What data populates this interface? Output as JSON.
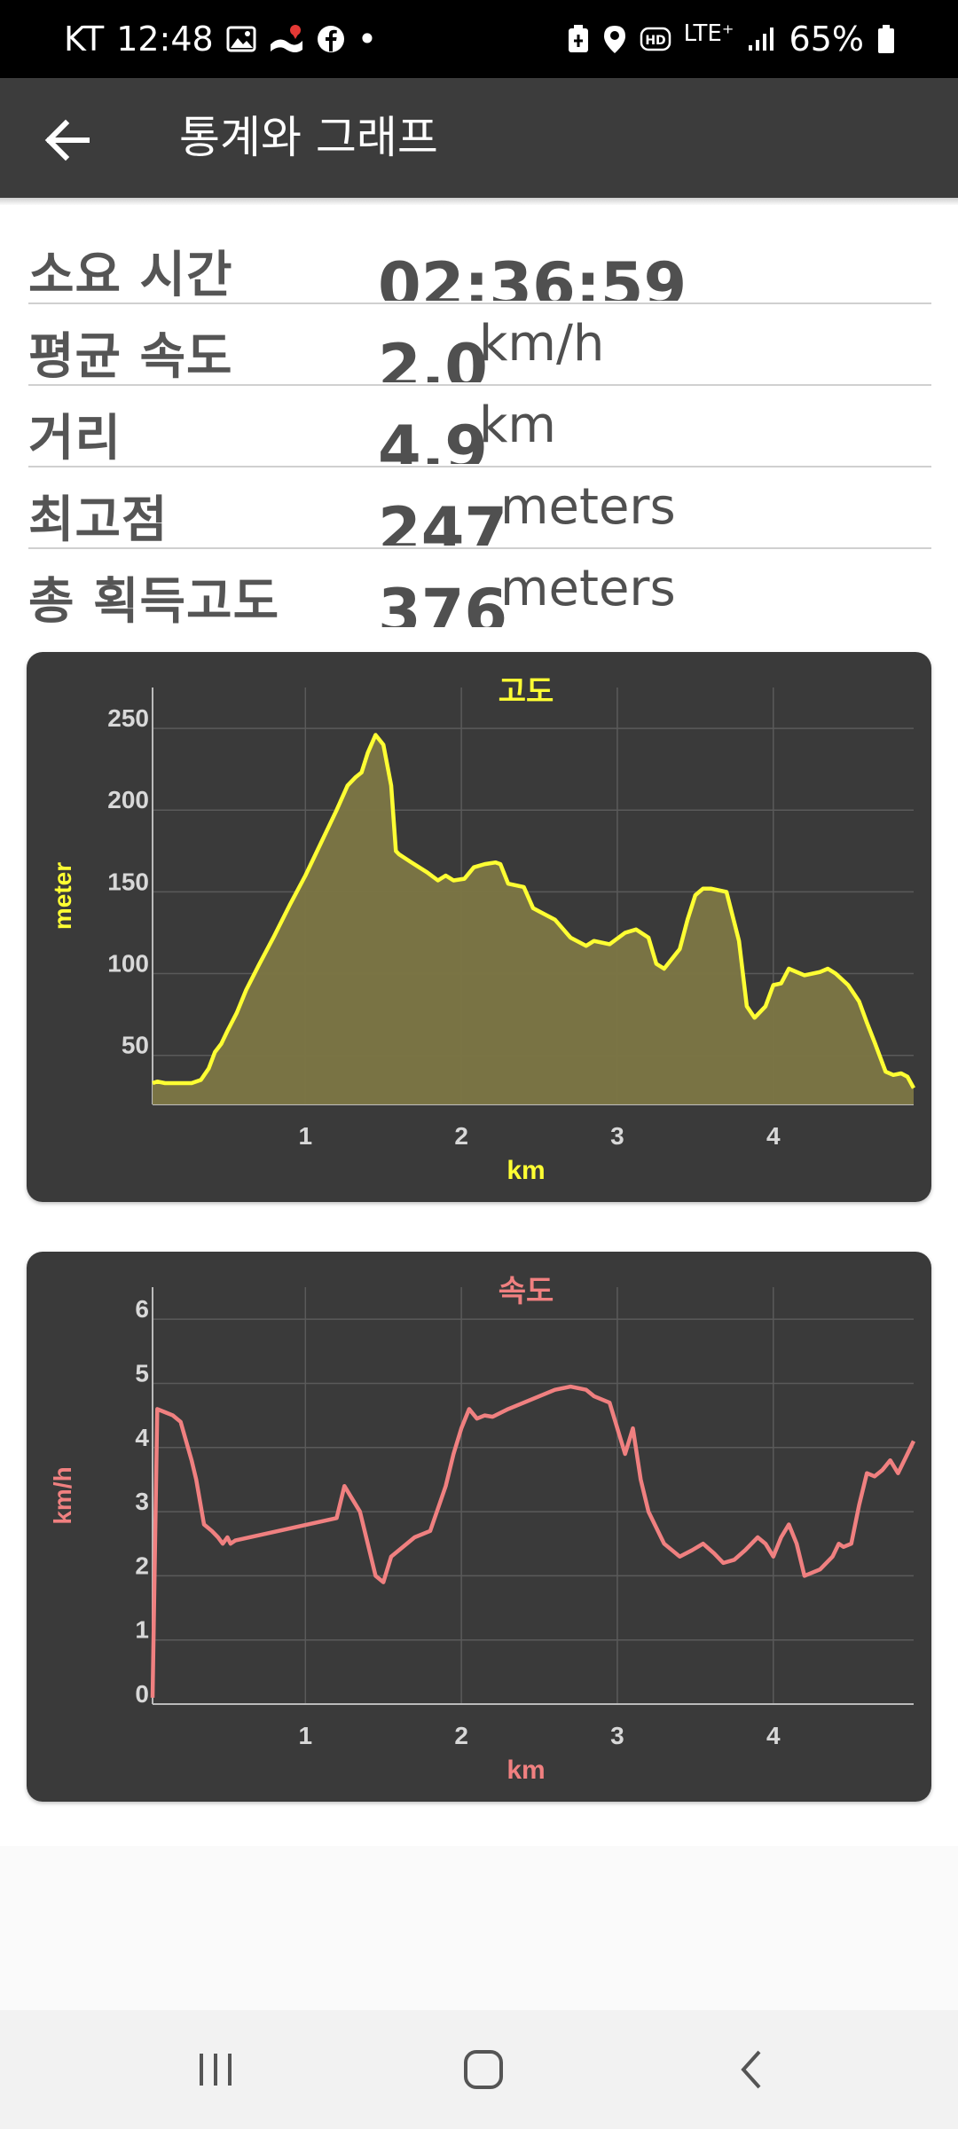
{
  "status_bar": {
    "carrier": "KT",
    "time": "12:48",
    "dot": "•",
    "network": "LTE⁺",
    "battery": "65%",
    "icons": [
      "gallery-icon",
      "map-notification-icon",
      "facebook-icon",
      "battery-saver-icon",
      "location-icon",
      "hd-voice-icon",
      "signal-icon",
      "battery-icon"
    ]
  },
  "header": {
    "back_icon": "arrow-left-icon",
    "title": "통계와 그래프"
  },
  "stats": [
    {
      "label": "소요 시간",
      "value": "02:36:59",
      "unit": ""
    },
    {
      "label": "평균 속도",
      "value": "2.0",
      "unit": "km/h"
    },
    {
      "label": "거리",
      "value": "4.9",
      "unit": "km"
    },
    {
      "label": "최고점",
      "value": "247",
      "unit": "meters"
    },
    {
      "label": "총 획득고도",
      "value": "376",
      "unit": "meters"
    }
  ],
  "chart_data": [
    {
      "type": "area",
      "title": "고도",
      "xlabel": "km",
      "ylabel": "meter",
      "color": "#ffff33",
      "fill": "#7c7644",
      "xlim": [
        0.02,
        4.9
      ],
      "ylim": [
        20,
        275
      ],
      "xticks": [
        1,
        2,
        3,
        4
      ],
      "yticks": [
        50,
        100,
        150,
        200,
        250
      ],
      "grid": true,
      "x": [
        0.02,
        0.05,
        0.1,
        0.2,
        0.27,
        0.33,
        0.38,
        0.42,
        0.46,
        0.5,
        0.56,
        0.62,
        0.7,
        0.8,
        0.9,
        1.0,
        1.1,
        1.2,
        1.27,
        1.32,
        1.36,
        1.4,
        1.45,
        1.5,
        1.55,
        1.58,
        1.6,
        1.68,
        1.78,
        1.85,
        1.9,
        1.95,
        2.02,
        2.08,
        2.15,
        2.22,
        2.25,
        2.3,
        2.4,
        2.46,
        2.5,
        2.6,
        2.7,
        2.8,
        2.85,
        2.95,
        3.05,
        3.12,
        3.2,
        3.25,
        3.3,
        3.4,
        3.45,
        3.5,
        3.55,
        3.6,
        3.7,
        3.78,
        3.83,
        3.88,
        3.95,
        4.0,
        4.05,
        4.1,
        4.2,
        4.3,
        4.35,
        4.4,
        4.48,
        4.55,
        4.6,
        4.65,
        4.72,
        4.77,
        4.82,
        4.86,
        4.9
      ],
      "y": [
        33,
        34,
        33,
        33,
        33,
        35,
        42,
        52,
        57,
        65,
        76,
        90,
        105,
        123,
        142,
        160,
        180,
        200,
        215,
        220,
        223,
        235,
        246,
        240,
        215,
        175,
        173,
        168,
        162,
        157,
        160,
        157,
        158,
        165,
        167,
        168,
        167,
        155,
        153,
        140,
        138,
        133,
        122,
        117,
        120,
        118,
        125,
        127,
        122,
        106,
        103,
        115,
        133,
        148,
        152,
        152,
        150,
        120,
        80,
        73,
        80,
        93,
        94,
        103,
        99,
        101,
        103,
        100,
        93,
        83,
        70,
        58,
        40,
        38,
        39,
        37,
        30
      ]
    },
    {
      "type": "line",
      "title": "속도",
      "xlabel": "km",
      "ylabel": "km/h",
      "color": "#f08080",
      "xlim": [
        0.02,
        4.9
      ],
      "ylim": [
        0,
        6.5
      ],
      "xticks": [
        1,
        2,
        3,
        4
      ],
      "yticks": [
        0,
        1,
        2,
        3,
        4,
        5,
        6
      ],
      "grid": true,
      "x": [
        0.02,
        0.05,
        0.1,
        0.15,
        0.2,
        0.27,
        0.3,
        0.35,
        0.4,
        0.44,
        0.47,
        0.5,
        0.52,
        0.55,
        1.2,
        1.25,
        1.3,
        1.35,
        1.4,
        1.45,
        1.5,
        1.55,
        1.6,
        1.7,
        1.8,
        1.9,
        1.95,
        2.0,
        2.05,
        2.1,
        2.15,
        2.2,
        2.3,
        2.4,
        2.5,
        2.6,
        2.7,
        2.8,
        2.85,
        2.95,
        3.05,
        3.1,
        3.15,
        3.2,
        3.3,
        3.4,
        3.48,
        3.55,
        3.62,
        3.68,
        3.75,
        3.82,
        3.9,
        3.95,
        4.0,
        4.05,
        4.1,
        4.15,
        4.2,
        4.3,
        4.38,
        4.42,
        4.45,
        4.5,
        4.55,
        4.6,
        4.65,
        4.7,
        4.75,
        4.8,
        4.86,
        4.9
      ],
      "y": [
        0.1,
        4.6,
        4.55,
        4.5,
        4.4,
        3.8,
        3.5,
        2.8,
        2.7,
        2.6,
        2.5,
        2.6,
        2.5,
        2.55,
        2.9,
        3.4,
        3.2,
        3.0,
        2.5,
        2.0,
        1.9,
        2.3,
        2.4,
        2.6,
        2.7,
        3.4,
        3.9,
        4.3,
        4.6,
        4.45,
        4.5,
        4.48,
        4.6,
        4.7,
        4.8,
        4.9,
        4.95,
        4.9,
        4.8,
        4.7,
        3.9,
        4.3,
        3.5,
        3.0,
        2.5,
        2.3,
        2.4,
        2.5,
        2.35,
        2.2,
        2.25,
        2.4,
        2.6,
        2.5,
        2.3,
        2.6,
        2.8,
        2.5,
        2.0,
        2.1,
        2.3,
        2.5,
        2.45,
        2.5,
        3.1,
        3.6,
        3.55,
        3.65,
        3.8,
        3.6,
        3.9,
        4.1
      ]
    }
  ]
}
